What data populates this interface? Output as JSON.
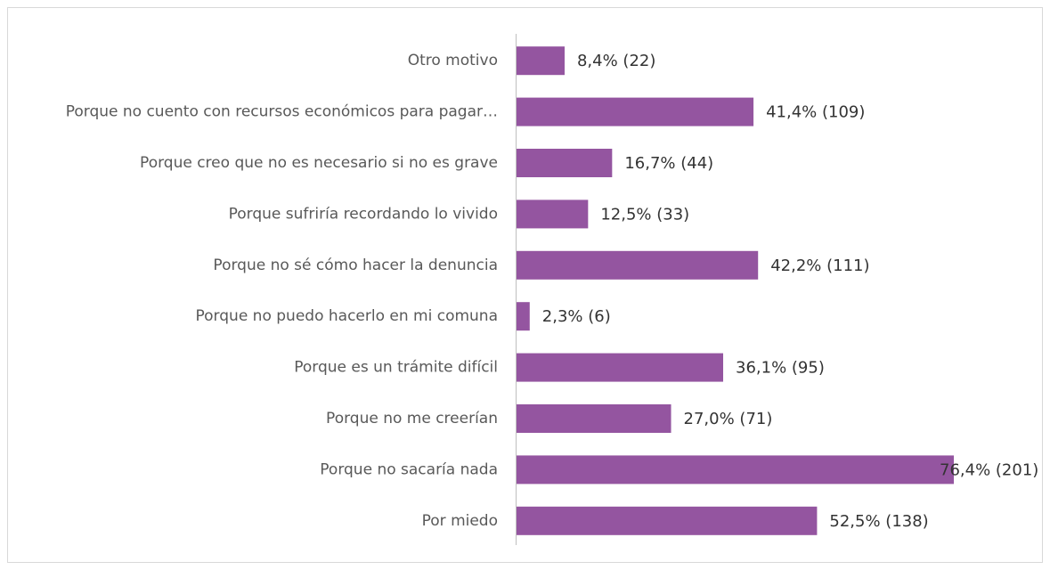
{
  "chart_data": {
    "type": "bar",
    "orientation": "horizontal",
    "color": "#9455a0",
    "categories": [
      "Otro motivo",
      "Porque no cuento con recursos económicos para pagar…",
      "Porque creo que no es necesario si no es grave",
      "Porque sufriría recordando lo vivido",
      "Porque no sé cómo hacer la denuncia",
      "Porque no puedo hacerlo en mi comuna",
      "Porque es un trámite difícil",
      "Porque no me creerían",
      "Porque no sacaría nada",
      "Por miedo"
    ],
    "values": [
      8.4,
      41.4,
      16.7,
      12.5,
      42.2,
      2.3,
      36.1,
      27.0,
      76.4,
      52.5
    ],
    "value_labels": [
      "8,4% (22)",
      "41,4% (109)",
      "16,7% (44)",
      "12,5% (33)",
      "42,2% (111)",
      "2,3% (6)",
      "36,1% (95)",
      "27,0% (71)",
      "76,4% (201)",
      "52,5% (138)"
    ]
  }
}
